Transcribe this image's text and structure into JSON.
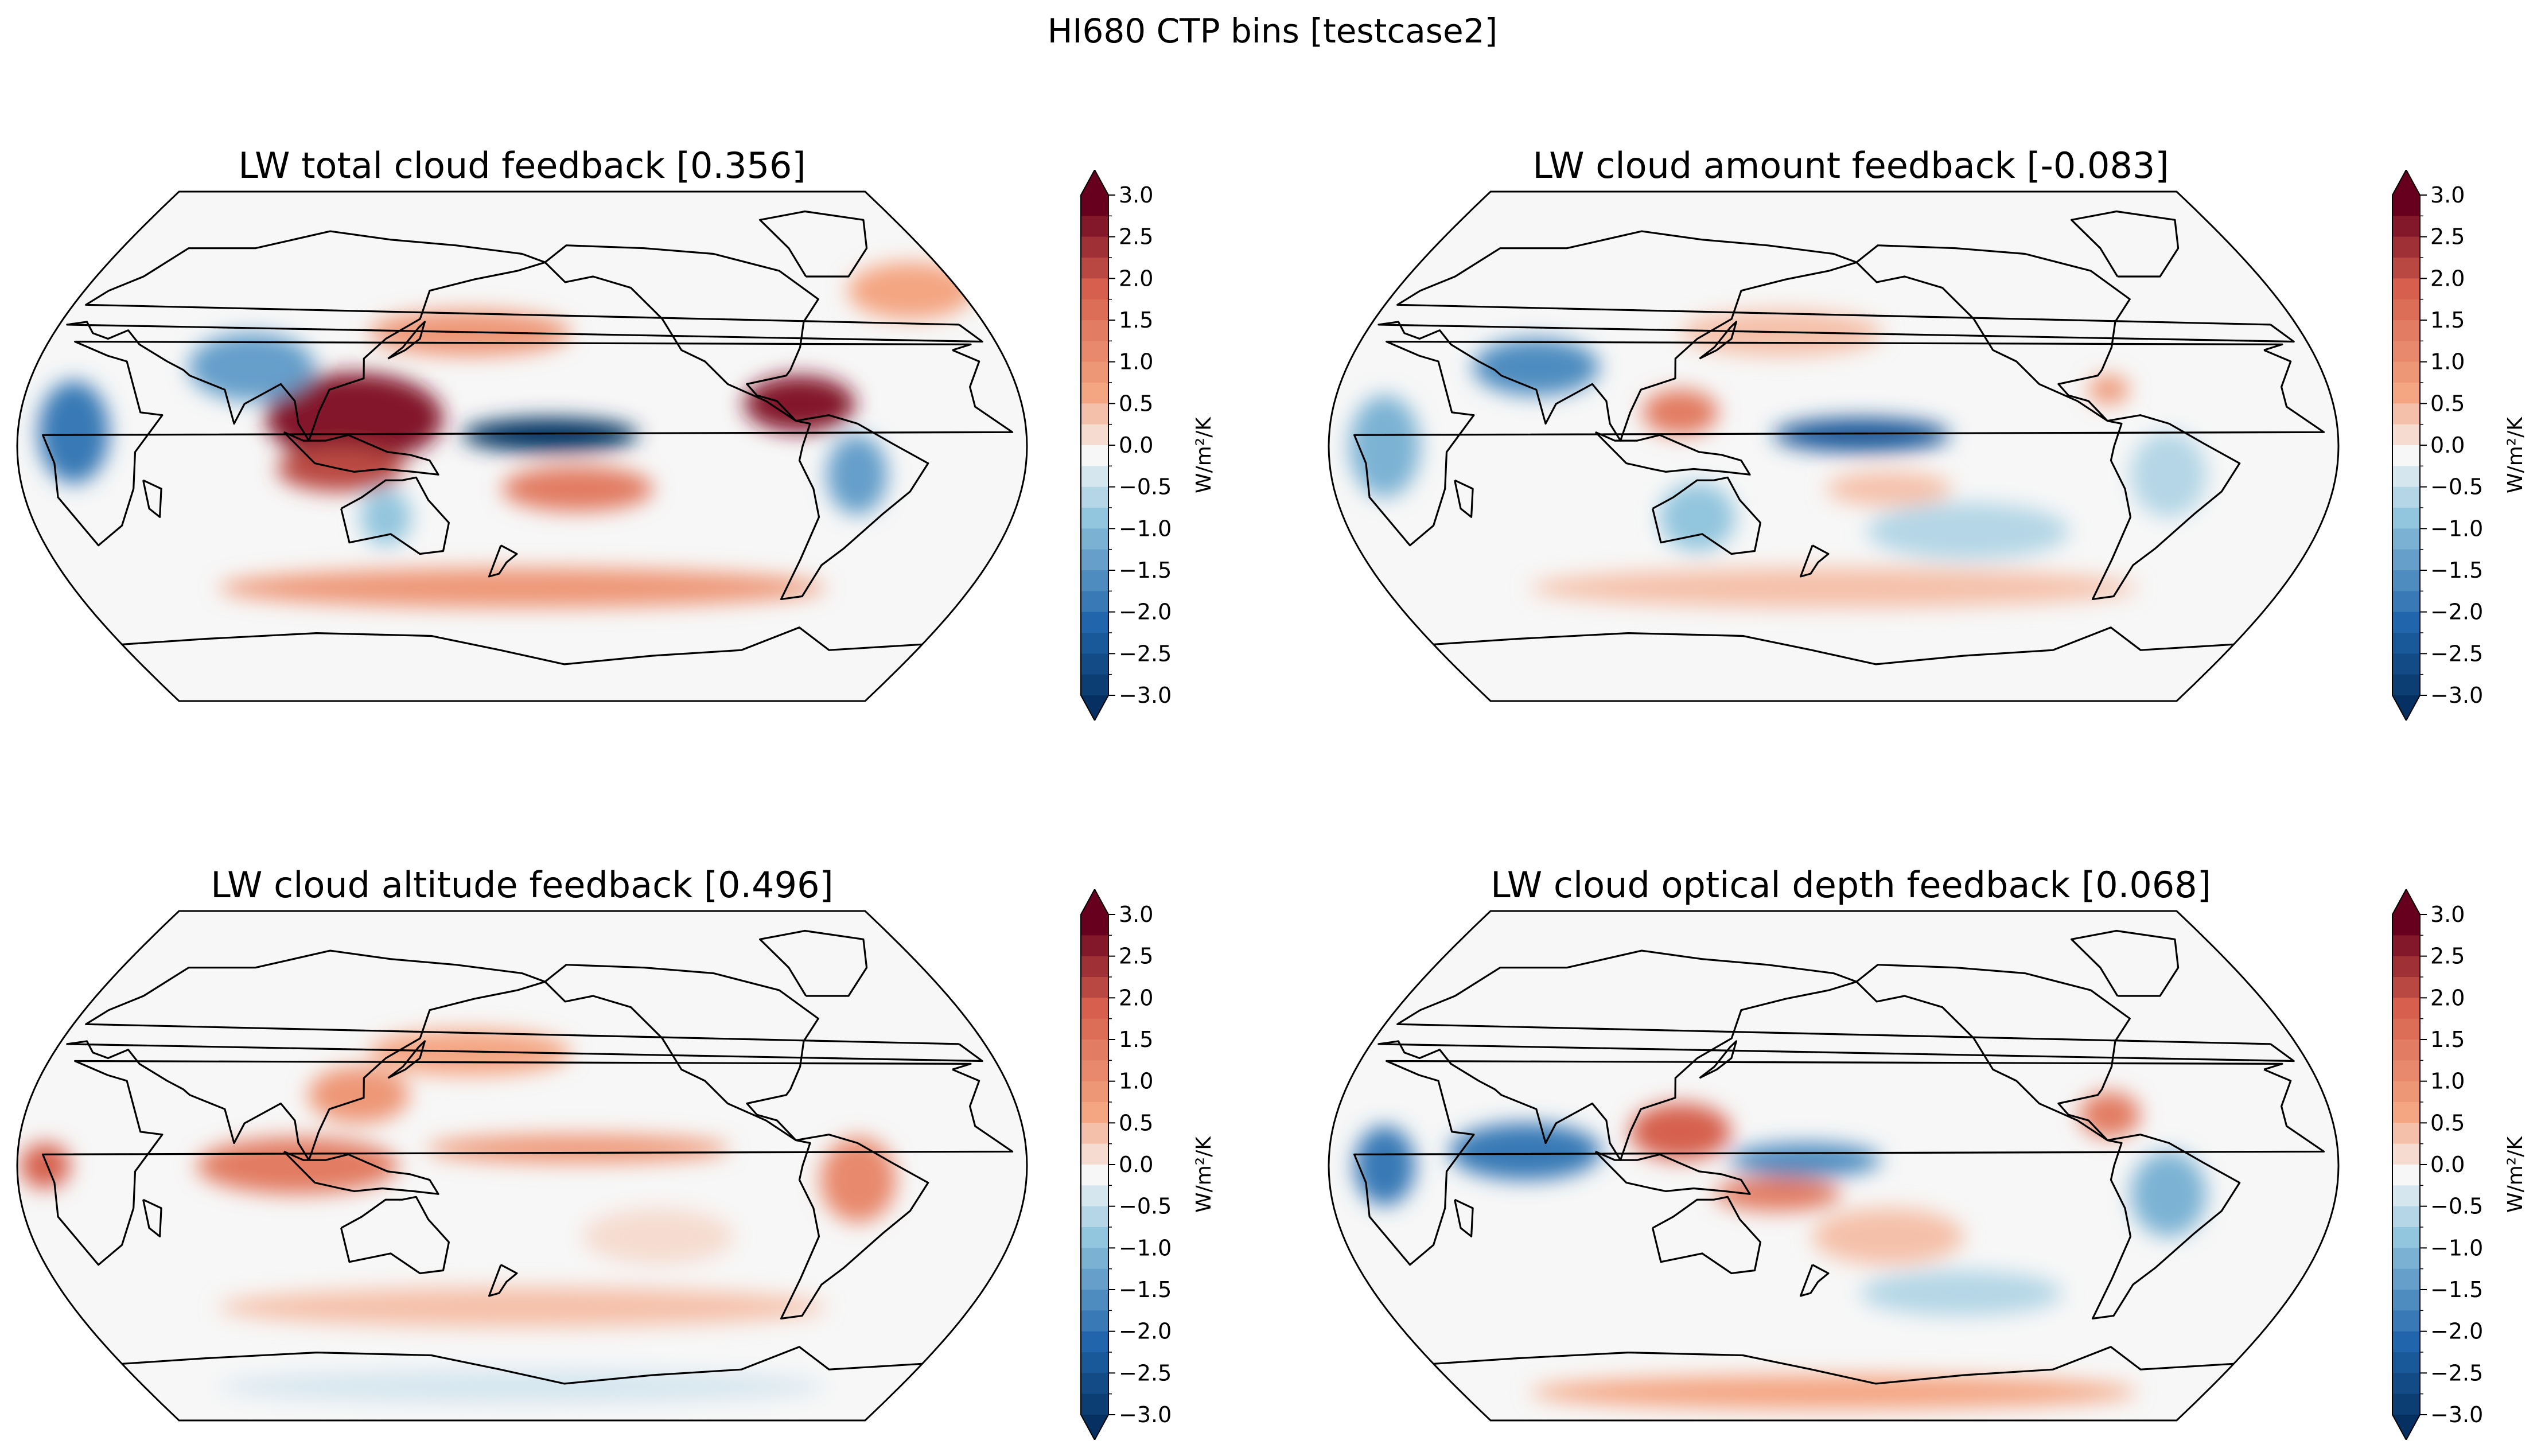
{
  "figure": {
    "suptitle": "HI680 CTP bins [testcase2]"
  },
  "colors": {
    "strong_negative": "#053061",
    "negative": "#2166ac",
    "weak_negative": "#92c5de",
    "neutral": "#f7f7f7",
    "weak_positive": "#f4a582",
    "positive": "#d6604d",
    "strong_positive": "#67001f"
  },
  "chart_data": [
    {
      "type": "heatmap",
      "projection": "Robinson (central longitude 180)",
      "title": "LW total cloud feedback [0.356]",
      "colorbar": {
        "label": "W/m²/K",
        "ticks": [
          "3.0",
          "2.5",
          "2.0",
          "1.5",
          "1.0",
          "0.5",
          "0.0",
          "−0.5",
          "−1.0",
          "−1.5",
          "−2.0",
          "−2.5",
          "−3.0"
        ],
        "range": [
          -3.0,
          3.0
        ],
        "extend": "both",
        "levels_step": 0.25
      },
      "features": [
        {
          "lon": 120,
          "lat": 10,
          "rx": 35,
          "ry": 16,
          "v": 2.8
        },
        {
          "lon": 115,
          "lat": -8,
          "rx": 25,
          "ry": 8,
          "v": 2.2
        },
        {
          "lon": 280,
          "lat": 15,
          "rx": 22,
          "ry": 10,
          "v": 2.8
        },
        {
          "lon": 190,
          "lat": 4,
          "rx": 35,
          "ry": 6,
          "v": -3.0
        },
        {
          "lon": 20,
          "lat": 5,
          "rx": 14,
          "ry": 18,
          "v": -1.8
        },
        {
          "lon": 80,
          "lat": 28,
          "rx": 25,
          "ry": 12,
          "v": -1.3
        },
        {
          "lon": 300,
          "lat": -10,
          "rx": 12,
          "ry": 14,
          "v": -1.2
        },
        {
          "lon": 160,
          "lat": 40,
          "rx": 40,
          "ry": 8,
          "v": 1.0
        },
        {
          "lon": 200,
          "lat": -15,
          "rx": 30,
          "ry": 8,
          "v": 1.4
        },
        {
          "lon": 180,
          "lat": -50,
          "rx": 120,
          "ry": 7,
          "v": 0.9
        },
        {
          "lon": 130,
          "lat": -25,
          "rx": 10,
          "ry": 10,
          "v": -0.8
        },
        {
          "lon": 340,
          "lat": 55,
          "rx": 25,
          "ry": 10,
          "v": 0.7
        }
      ]
    },
    {
      "type": "heatmap",
      "projection": "Robinson (central longitude 180)",
      "title": "LW cloud amount feedback [-0.083]",
      "colorbar": {
        "label": "W/m²/K",
        "ticks": [
          "3.0",
          "2.5",
          "2.0",
          "1.5",
          "1.0",
          "0.5",
          "0.0",
          "−0.5",
          "−1.0",
          "−1.5",
          "−2.0",
          "−2.5",
          "−3.0"
        ],
        "range": [
          -3.0,
          3.0
        ],
        "extend": "both",
        "levels_step": 0.25
      },
      "features": [
        {
          "lon": 190,
          "lat": 4,
          "rx": 35,
          "ry": 6,
          "v": -2.2
        },
        {
          "lon": 70,
          "lat": 28,
          "rx": 25,
          "ry": 10,
          "v": -1.5
        },
        {
          "lon": 125,
          "lat": 12,
          "rx": 15,
          "ry": 8,
          "v": 1.5
        },
        {
          "lon": 280,
          "lat": 20,
          "rx": 8,
          "ry": 5,
          "v": 0.9
        },
        {
          "lon": 20,
          "lat": 0,
          "rx": 14,
          "ry": 18,
          "v": -1.0
        },
        {
          "lon": 130,
          "lat": -25,
          "rx": 15,
          "ry": 12,
          "v": -0.8
        },
        {
          "lon": 300,
          "lat": -10,
          "rx": 15,
          "ry": 15,
          "v": -0.6
        },
        {
          "lon": 230,
          "lat": -30,
          "rx": 40,
          "ry": 10,
          "v": -0.4
        },
        {
          "lon": 200,
          "lat": -15,
          "rx": 25,
          "ry": 6,
          "v": 0.4
        },
        {
          "lon": 160,
          "lat": 40,
          "rx": 40,
          "ry": 8,
          "v": 0.4
        },
        {
          "lon": 180,
          "lat": -50,
          "rx": 120,
          "ry": 7,
          "v": 0.4
        }
      ]
    },
    {
      "type": "heatmap",
      "projection": "Robinson (central longitude 180)",
      "title": "LW cloud altitude feedback [0.496]",
      "colorbar": {
        "label": "W/m²/K",
        "ticks": [
          "3.0",
          "2.5",
          "2.0",
          "1.5",
          "1.0",
          "0.5",
          "0.0",
          "−0.5",
          "−1.0",
          "−1.5",
          "−2.0",
          "−2.5",
          "−3.0"
        ],
        "range": [
          -3.0,
          3.0
        ],
        "extend": "both",
        "levels_step": 0.25
      },
      "features": [
        {
          "lon": 100,
          "lat": 0,
          "rx": 40,
          "ry": 10,
          "v": 1.6
        },
        {
          "lon": 10,
          "lat": 0,
          "rx": 10,
          "ry": 8,
          "v": 2.0
        },
        {
          "lon": 200,
          "lat": 6,
          "rx": 60,
          "ry": 5,
          "v": 1.0
        },
        {
          "lon": 300,
          "lat": -5,
          "rx": 15,
          "ry": 15,
          "v": 1.2
        },
        {
          "lon": 120,
          "lat": 25,
          "rx": 20,
          "ry": 10,
          "v": 1.0
        },
        {
          "lon": 160,
          "lat": 40,
          "rx": 40,
          "ry": 8,
          "v": 0.8
        },
        {
          "lon": 180,
          "lat": -50,
          "rx": 120,
          "ry": 7,
          "v": 0.6
        },
        {
          "lon": 180,
          "lat": -78,
          "rx": 120,
          "ry": 6,
          "v": -0.2
        },
        {
          "lon": 230,
          "lat": -25,
          "rx": 30,
          "ry": 10,
          "v": 0.3
        }
      ]
    },
    {
      "type": "heatmap",
      "projection": "Robinson (central longitude 180)",
      "title": "LW cloud optical depth feedback [0.068]",
      "colorbar": {
        "label": "W/m²/K",
        "ticks": [
          "3.0",
          "2.5",
          "2.0",
          "1.5",
          "1.0",
          "0.5",
          "0.0",
          "−0.5",
          "−1.0",
          "−1.5",
          "−2.0",
          "−2.5",
          "−3.0"
        ],
        "range": [
          -3.0,
          3.0
        ],
        "extend": "both",
        "levels_step": 0.25
      },
      "features": [
        {
          "lon": 70,
          "lat": 5,
          "rx": 30,
          "ry": 10,
          "v": -1.8
        },
        {
          "lon": 20,
          "lat": 0,
          "rx": 12,
          "ry": 14,
          "v": -1.7
        },
        {
          "lon": 170,
          "lat": 2,
          "rx": 30,
          "ry": 6,
          "v": -1.5
        },
        {
          "lon": 125,
          "lat": 12,
          "rx": 20,
          "ry": 10,
          "v": 2.0
        },
        {
          "lon": 160,
          "lat": -10,
          "rx": 25,
          "ry": 6,
          "v": 1.4
        },
        {
          "lon": 280,
          "lat": 18,
          "rx": 12,
          "ry": 8,
          "v": 1.6
        },
        {
          "lon": 300,
          "lat": -10,
          "rx": 15,
          "ry": 15,
          "v": -1.0
        },
        {
          "lon": 180,
          "lat": -80,
          "rx": 120,
          "ry": 6,
          "v": 0.8
        },
        {
          "lon": 200,
          "lat": -25,
          "rx": 30,
          "ry": 10,
          "v": 0.5
        },
        {
          "lon": 230,
          "lat": -45,
          "rx": 40,
          "ry": 8,
          "v": -0.4
        }
      ]
    }
  ]
}
